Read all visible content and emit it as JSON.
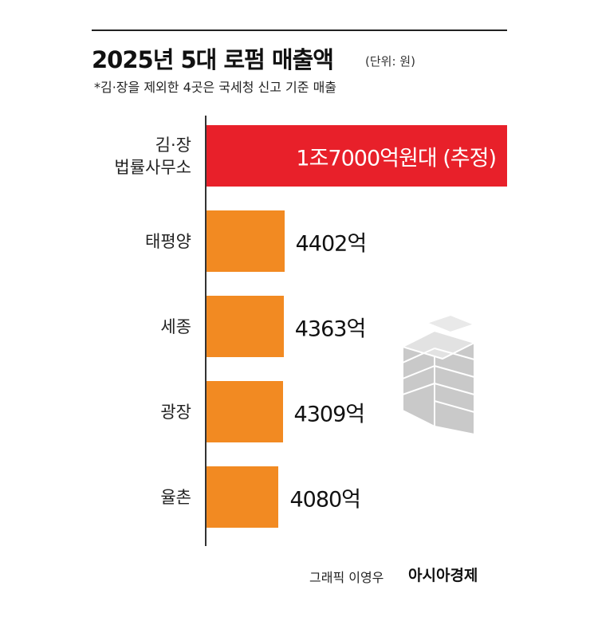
{
  "chart_data": {
    "type": "bar",
    "orientation": "horizontal",
    "title": "2025년 5대 로펌 매출액",
    "subtitle": "(단위: 원)",
    "note": "*김·장을 제외한 4곳은 국세청 신고 기준 매출",
    "categories": [
      "김·장\n법률사무소",
      "태평양",
      "세종",
      "광장",
      "율촌"
    ],
    "values": [
      17000,
      4402,
      4363,
      4309,
      4080
    ],
    "value_labels": [
      "1조7000억원대 (추정)",
      "4402억",
      "4363억",
      "4309억",
      "4080억"
    ],
    "colors": [
      "#e8202a",
      "#f28a22",
      "#f28a22",
      "#f28a22",
      "#f28a22"
    ],
    "credit": "그래픽 이영우",
    "source": "아시아경제"
  }
}
